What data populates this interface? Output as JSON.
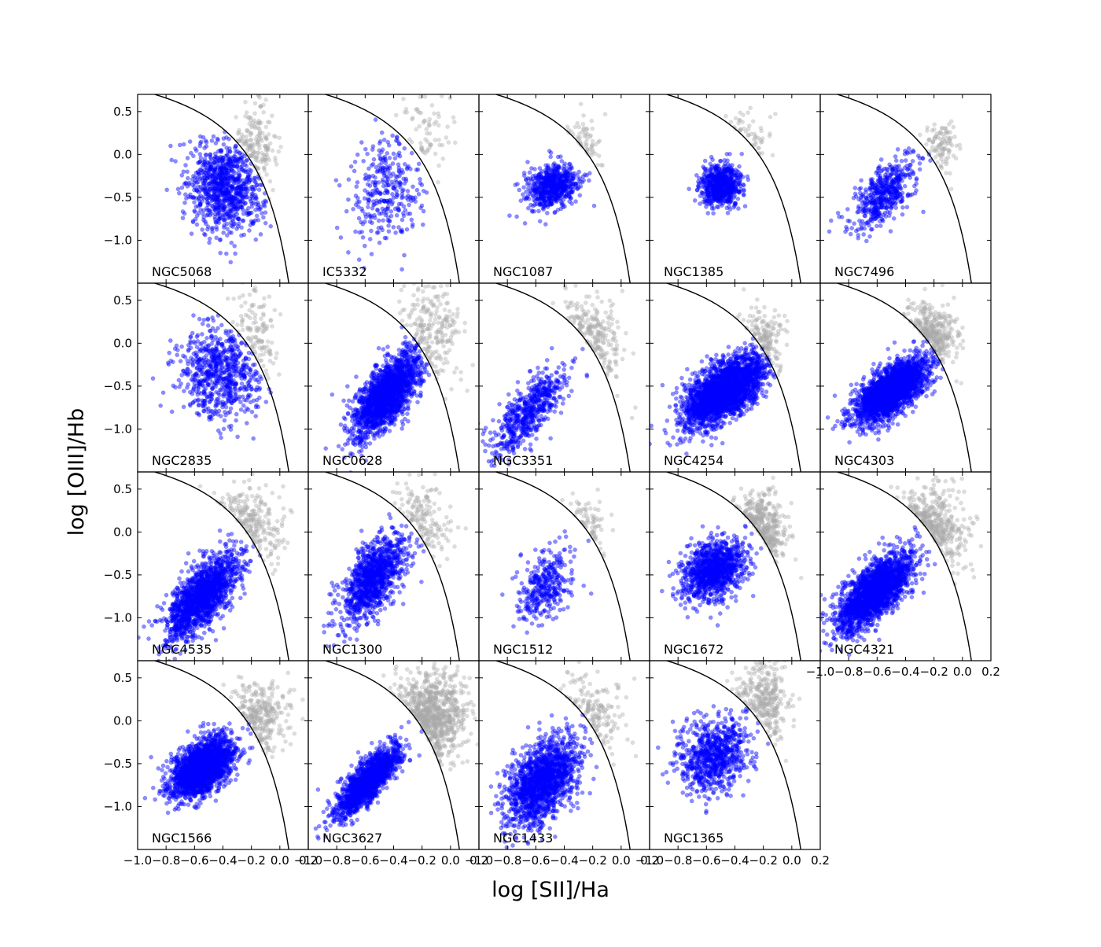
{
  "chart_data": {
    "type": "scatter",
    "xlabel": "log [SII]/Ha",
    "ylabel": "log [OIII]/Hb",
    "xlim": [
      -1.0,
      0.2
    ],
    "ylim": [
      -1.5,
      0.7
    ],
    "x_ticks": [
      "−1.0",
      "−0.8",
      "−0.6",
      "−0.4",
      "−0.2",
      "0.0",
      "0.2"
    ],
    "y_ticks": [
      "0.5",
      "0.0",
      "−0.5",
      "−1.0"
    ],
    "y_tick_values": [
      0.5,
      0.0,
      -0.5,
      -1.0
    ],
    "grid": false,
    "legend": "none",
    "colors": {
      "hii": "#0000ff",
      "other": "#a9a9a9",
      "demarcation": "#000000"
    },
    "demarcation_line": "log([OIII]/Hb) = 0.72 / (log([SII]/Ha) − 0.32) + 1.30",
    "panels": [
      {
        "label": "NGC5068",
        "hii": {
          "center": [
            -0.38,
            -0.38
          ],
          "spread": [
            0.13,
            0.26
          ],
          "corr": -0.1,
          "count": 900
        },
        "other": {
          "center": [
            -0.18,
            0.05
          ],
          "spread": [
            0.08,
            0.25
          ],
          "count": 170
        }
      },
      {
        "label": "IC5332",
        "hii": {
          "center": [
            -0.45,
            -0.4
          ],
          "spread": [
            0.13,
            0.32
          ],
          "corr": 0.1,
          "count": 320
        },
        "other": {
          "center": [
            -0.18,
            0.25
          ],
          "spread": [
            0.09,
            0.25
          ],
          "count": 70
        }
      },
      {
        "label": "NGC1087",
        "hii": {
          "center": [
            -0.48,
            -0.38
          ],
          "spread": [
            0.09,
            0.13
          ],
          "corr": 0.2,
          "count": 650
        },
        "other": {
          "center": [
            -0.28,
            0.05
          ],
          "spread": [
            0.07,
            0.18
          ],
          "count": 60
        }
      },
      {
        "label": "NGC1385",
        "hii": {
          "center": [
            -0.5,
            -0.35
          ],
          "spread": [
            0.07,
            0.12
          ],
          "corr": 0.1,
          "count": 700
        },
        "other": {
          "center": [
            -0.35,
            0.1
          ],
          "spread": [
            0.08,
            0.2
          ],
          "count": 50
        }
      },
      {
        "label": "NGC7496",
        "hii": {
          "center": [
            -0.55,
            -0.45
          ],
          "spread": [
            0.11,
            0.2
          ],
          "corr": 0.55,
          "count": 500
        },
        "other": {
          "center": [
            -0.15,
            0.1
          ],
          "spread": [
            0.06,
            0.15
          ],
          "count": 100
        }
      },
      {
        "label": "NGC2835",
        "hii": {
          "center": [
            -0.42,
            -0.35
          ],
          "spread": [
            0.14,
            0.28
          ],
          "corr": 0.0,
          "count": 700
        },
        "other": {
          "center": [
            -0.18,
            0.05
          ],
          "spread": [
            0.09,
            0.28
          ],
          "count": 120
        }
      },
      {
        "label": "NGC0628",
        "hii": {
          "center": [
            -0.45,
            -0.6
          ],
          "spread": [
            0.12,
            0.25
          ],
          "corr": 0.7,
          "count": 1800
        },
        "other": {
          "center": [
            -0.15,
            0.1
          ],
          "spread": [
            0.11,
            0.3
          ],
          "count": 230
        }
      },
      {
        "label": "NGC3351",
        "hii": {
          "center": [
            -0.65,
            -0.8
          ],
          "spread": [
            0.13,
            0.25
          ],
          "corr": 0.75,
          "count": 600
        },
        "other": {
          "center": [
            -0.25,
            0.0
          ],
          "spread": [
            0.12,
            0.28
          ],
          "count": 220
        }
      },
      {
        "label": "NGC4254",
        "hii": {
          "center": [
            -0.48,
            -0.55
          ],
          "spread": [
            0.14,
            0.2
          ],
          "corr": 0.6,
          "count": 2600
        },
        "other": {
          "center": [
            -0.22,
            0.0
          ],
          "spread": [
            0.08,
            0.2
          ],
          "count": 150
        }
      },
      {
        "label": "NGC4303",
        "hii": {
          "center": [
            -0.5,
            -0.55
          ],
          "spread": [
            0.12,
            0.18
          ],
          "corr": 0.65,
          "count": 2600
        },
        "other": {
          "center": [
            -0.25,
            0.05
          ],
          "spread": [
            0.1,
            0.2
          ],
          "count": 330
        }
      },
      {
        "label": "NGC4535",
        "hii": {
          "center": [
            -0.55,
            -0.75
          ],
          "spread": [
            0.13,
            0.25
          ],
          "corr": 0.7,
          "count": 1600
        },
        "other": {
          "center": [
            -0.25,
            0.0
          ],
          "spread": [
            0.12,
            0.25
          ],
          "count": 230
        }
      },
      {
        "label": "NGC1300",
        "hii": {
          "center": [
            -0.55,
            -0.55
          ],
          "spread": [
            0.11,
            0.25
          ],
          "corr": 0.6,
          "count": 1100
        },
        "other": {
          "center": [
            -0.25,
            0.05
          ],
          "spread": [
            0.11,
            0.25
          ],
          "count": 160
        }
      },
      {
        "label": "NGC1512",
        "hii": {
          "center": [
            -0.55,
            -0.65
          ],
          "spread": [
            0.1,
            0.22
          ],
          "corr": 0.5,
          "count": 350
        },
        "other": {
          "center": [
            -0.3,
            -0.05
          ],
          "spread": [
            0.09,
            0.2
          ],
          "count": 70
        }
      },
      {
        "label": "NGC1672",
        "hii": {
          "center": [
            -0.55,
            -0.45
          ],
          "spread": [
            0.11,
            0.18
          ],
          "corr": 0.3,
          "count": 1100
        },
        "other": {
          "center": [
            -0.25,
            -0.05
          ],
          "spread": [
            0.09,
            0.22
          ],
          "count": 360
        }
      },
      {
        "label": "NGC4321",
        "hii": {
          "center": [
            -0.62,
            -0.7
          ],
          "spread": [
            0.13,
            0.22
          ],
          "corr": 0.7,
          "count": 2200
        },
        "other": {
          "center": [
            -0.25,
            0.0
          ],
          "spread": [
            0.13,
            0.25
          ],
          "count": 380
        }
      },
      {
        "label": "NGC1566",
        "hii": {
          "center": [
            -0.55,
            -0.55
          ],
          "spread": [
            0.11,
            0.17
          ],
          "corr": 0.5,
          "count": 2200
        },
        "other": {
          "center": [
            -0.15,
            0.05
          ],
          "spread": [
            0.1,
            0.22
          ],
          "count": 280
        }
      },
      {
        "label": "NGC3627",
        "hii": {
          "center": [
            -0.58,
            -0.7
          ],
          "spread": [
            0.11,
            0.2
          ],
          "corr": 0.8,
          "count": 1600
        },
        "other": {
          "center": [
            -0.15,
            0.05
          ],
          "spread": [
            0.12,
            0.25
          ],
          "count": 800
        }
      },
      {
        "label": "NGC1433",
        "hii": {
          "center": [
            -0.55,
            -0.7
          ],
          "spread": [
            0.13,
            0.25
          ],
          "corr": 0.5,
          "count": 1600
        },
        "other": {
          "center": [
            -0.25,
            0.0
          ],
          "spread": [
            0.12,
            0.25
          ],
          "count": 160
        }
      },
      {
        "label": "NGC1365",
        "hii": {
          "center": [
            -0.55,
            -0.4
          ],
          "spread": [
            0.13,
            0.22
          ],
          "corr": 0.2,
          "count": 800
        },
        "other": {
          "center": [
            -0.2,
            0.25
          ],
          "spread": [
            0.09,
            0.25
          ],
          "count": 320
        }
      }
    ]
  }
}
